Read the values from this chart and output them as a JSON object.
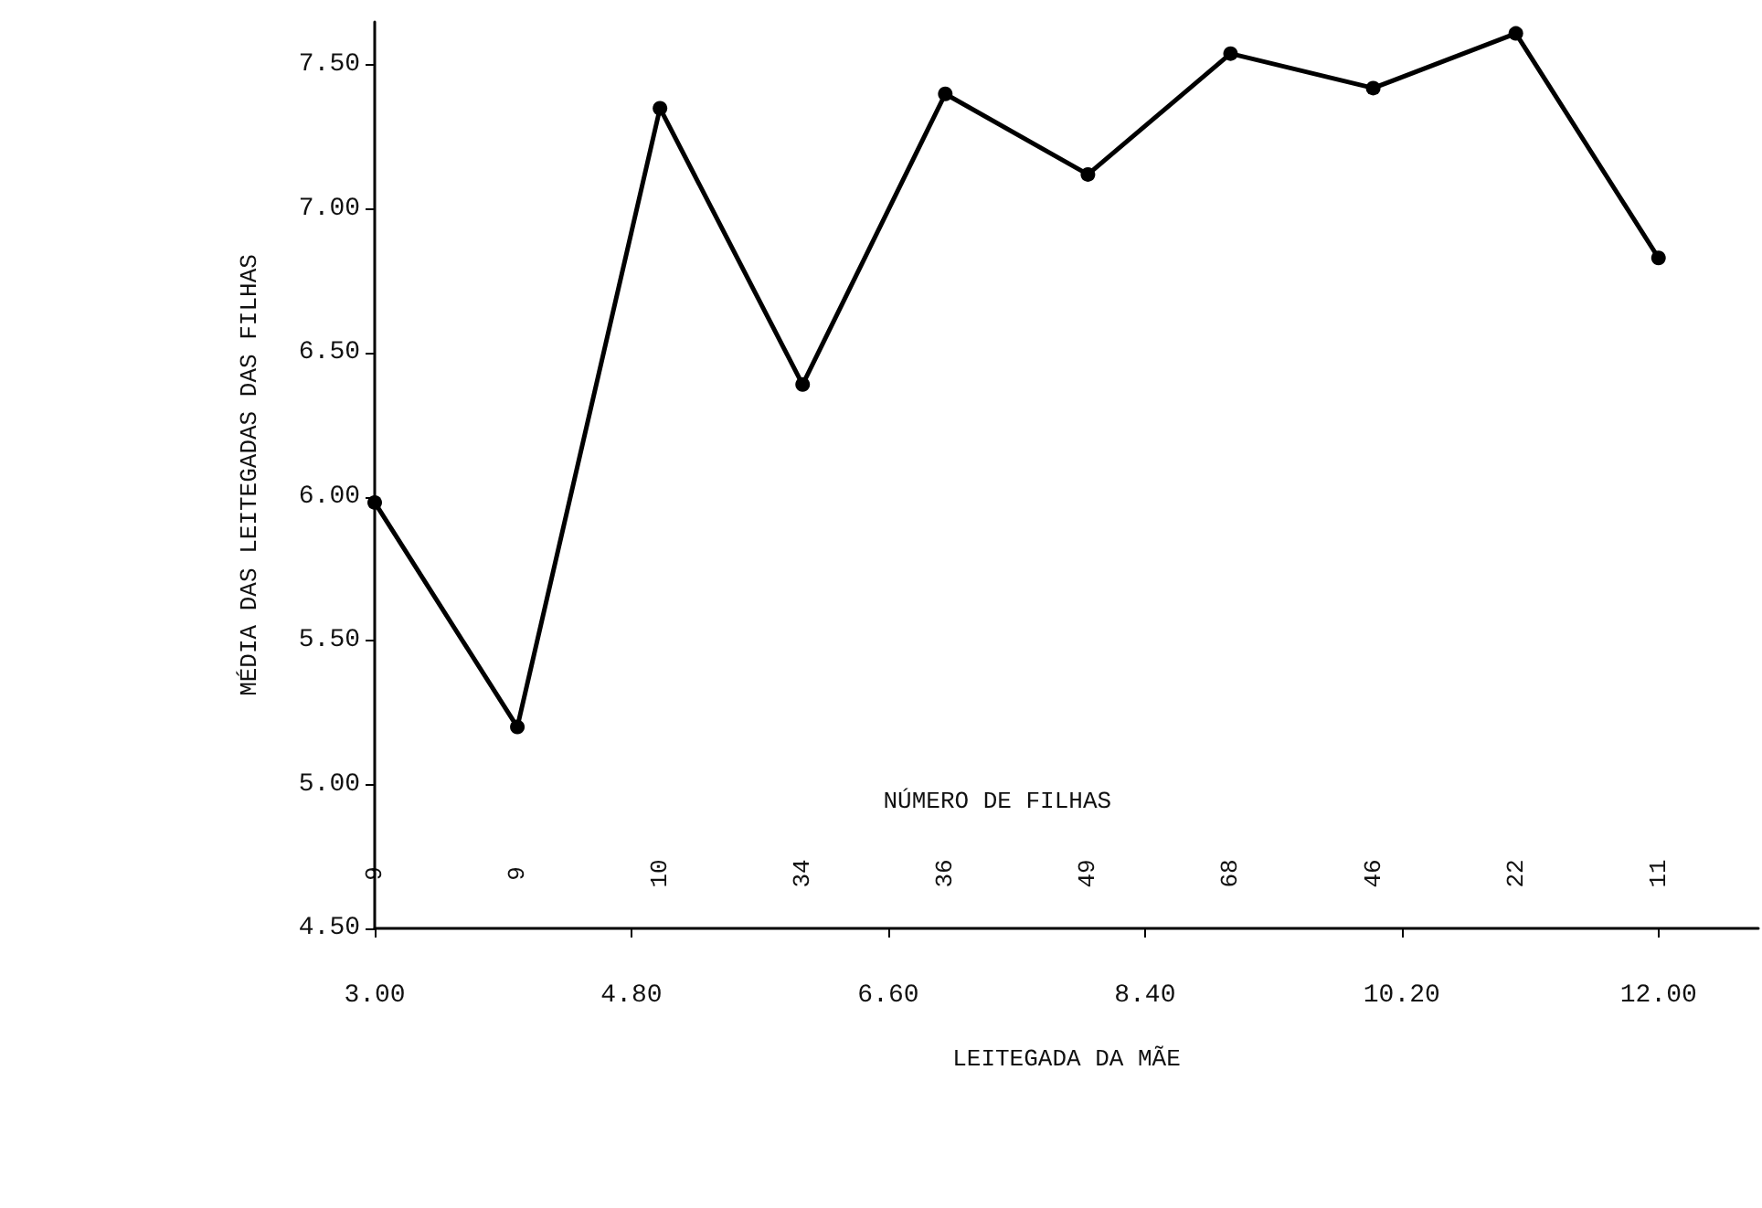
{
  "chart_data": {
    "type": "line",
    "xlabel": "LEITEGADA DA MÃE",
    "ylabel": "MÉDIA DAS LEITEGADAS DAS FILHAS",
    "x": [
      3,
      4,
      5,
      6,
      7,
      8,
      9,
      10,
      11,
      12
    ],
    "series": [
      {
        "color": "#000000",
        "values": [
          5.98,
          5.2,
          7.35,
          6.39,
          7.4,
          7.12,
          7.54,
          7.42,
          7.61,
          6.83
        ]
      }
    ],
    "xlim": [
      3,
      12.7
    ],
    "xticks": [
      {
        "value": 3,
        "label": "3.00"
      },
      {
        "value": 4.8,
        "label": "4.80"
      },
      {
        "value": 6.6,
        "label": "6.60"
      },
      {
        "value": 8.4,
        "label": "8.40"
      },
      {
        "value": 10.2,
        "label": "10.20"
      },
      {
        "value": 12,
        "label": "12.00"
      }
    ],
    "ylim": [
      4.5,
      7.65
    ],
    "yticks": [
      {
        "value": 4.5,
        "label": "4.50"
      },
      {
        "value": 5,
        "label": "5.00"
      },
      {
        "value": 5.5,
        "label": "5.50"
      },
      {
        "value": 6,
        "label": "6.00"
      },
      {
        "value": 6.5,
        "label": "6.50"
      },
      {
        "value": 7,
        "label": "7.00"
      },
      {
        "value": 7.5,
        "label": "7.50"
      }
    ],
    "annotations": [
      "NÚMERO DE FILHAS",
      "9",
      "9",
      "10",
      "34",
      "36",
      "49",
      "68",
      "46",
      "22",
      "11"
    ],
    "grid": false,
    "marker": "circle",
    "line_style": "solid"
  }
}
